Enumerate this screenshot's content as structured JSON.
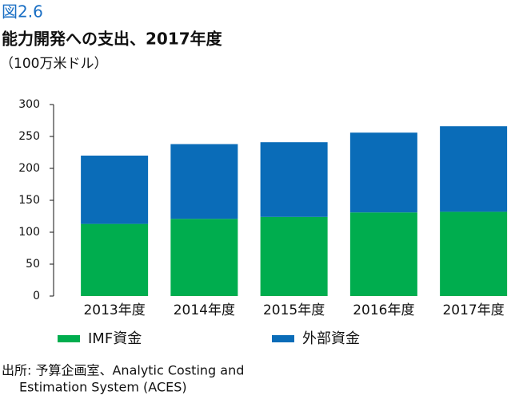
{
  "figure_label": "図2.6",
  "chart_data": {
    "type": "bar",
    "stacked": true,
    "title": "能力開発への支出、2017年度",
    "subtitle": "（100万米ドル）",
    "categories": [
      "2013年度",
      "2014年度",
      "2015年度",
      "2016年度",
      "2017年度"
    ],
    "series": [
      {
        "name": "IMF資金",
        "color": "#00ad4e",
        "values": [
          113,
          121,
          124,
          131,
          132
        ]
      },
      {
        "name": "外部資金",
        "color": "#0a6cb8",
        "values": [
          107,
          117,
          117,
          125,
          134
        ]
      }
    ],
    "ylim": [
      0,
      300
    ],
    "yticks": [
      0,
      50,
      100,
      150,
      200,
      250,
      300
    ],
    "grid": false
  },
  "source": [
    "出所: 予算企画室、Analytic Costing and",
    "Estimation System (ACES)"
  ]
}
